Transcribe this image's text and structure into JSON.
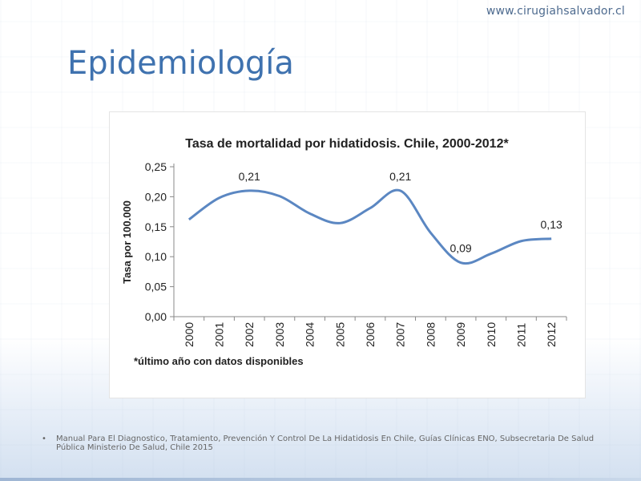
{
  "header": {
    "site_url": "www.cirugiahsalvador.cl"
  },
  "slide": {
    "title": "Epidemiología"
  },
  "chart_data": {
    "type": "line",
    "title": "Tasa de mortalidad por hidatidosis. Chile, 2000-2012*",
    "xlabel": "",
    "ylabel": "Tasa por 100.000",
    "x": [
      "2000",
      "2001",
      "2002",
      "2003",
      "2004",
      "2005",
      "2006",
      "2007",
      "2008",
      "2009",
      "2010",
      "2011",
      "2012"
    ],
    "series": [
      {
        "values": [
          0.162,
          0.198,
          0.21,
          0.201,
          0.172,
          0.156,
          0.181,
          0.21,
          0.14,
          0.09,
          0.105,
          0.126,
          0.13
        ]
      }
    ],
    "data_labels": [
      {
        "index": 2,
        "text": "0,21"
      },
      {
        "index": 7,
        "text": "0,21"
      },
      {
        "index": 9,
        "text": "0,09"
      },
      {
        "index": 12,
        "text": "0,13"
      }
    ],
    "y_ticks": [
      "0,00",
      "0,05",
      "0,10",
      "0,15",
      "0,20",
      "0,25"
    ],
    "ylim": [
      0,
      0.25
    ],
    "grid": false,
    "line_color": "#5b87c2",
    "footnote": "*último año con datos disponibles"
  },
  "source": {
    "bullet": "•",
    "text": "Manual Para El Diagnostico, Tratamiento, Prevención Y Control De La Hidatidosis En Chile, Guías Clínicas ENO, Subsecretaria De Salud Pública Ministerio De Salud, Chile 2015"
  }
}
